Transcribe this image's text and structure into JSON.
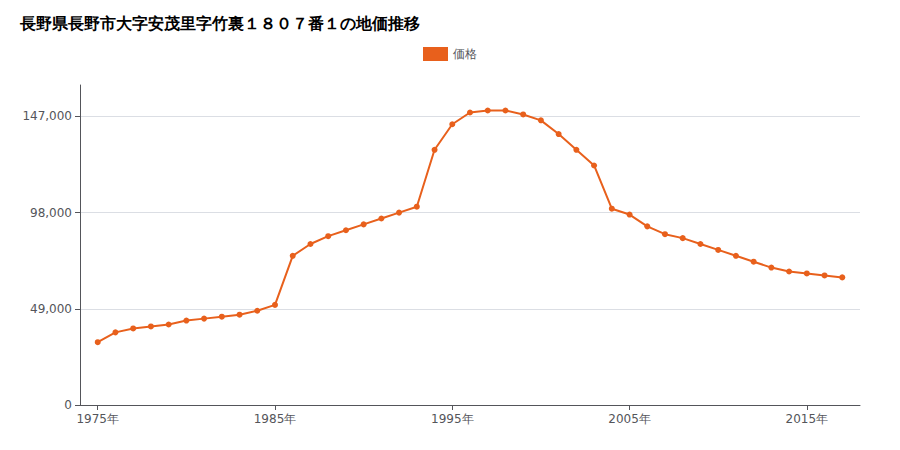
{
  "chart_data": {
    "type": "line",
    "title": "長野県長野市大字安茂里字竹裏１８０７番１の地価推移",
    "x": [
      1975,
      1976,
      1977,
      1978,
      1979,
      1980,
      1981,
      1982,
      1983,
      1984,
      1985,
      1986,
      1987,
      1988,
      1989,
      1990,
      1991,
      1992,
      1993,
      1994,
      1995,
      1996,
      1997,
      1998,
      1999,
      2000,
      2001,
      2002,
      2003,
      2004,
      2005,
      2006,
      2007,
      2008,
      2009,
      2010,
      2011,
      2012,
      2013,
      2014,
      2015,
      2016,
      2017
    ],
    "series": [
      {
        "name": "価格",
        "color": "#e8601c",
        "marker": "circle",
        "values": [
          32000,
          37000,
          39000,
          40000,
          41000,
          43000,
          44000,
          45000,
          46000,
          48000,
          51000,
          76000,
          82000,
          86000,
          89000,
          92000,
          95000,
          98000,
          101000,
          130000,
          143000,
          149000,
          150000,
          150000,
          148000,
          145000,
          138000,
          130000,
          122000,
          100000,
          97000,
          91000,
          87000,
          85000,
          82000,
          79000,
          76000,
          73000,
          70000,
          68000,
          67000,
          66000,
          65000
        ]
      }
    ],
    "xlim": [
      1974,
      2018
    ],
    "xticks": [
      {
        "value": 1975,
        "label": "1975年"
      },
      {
        "value": 1985,
        "label": "1985年"
      },
      {
        "value": 1995,
        "label": "1995年"
      },
      {
        "value": 2005,
        "label": "2005年"
      },
      {
        "value": 2015,
        "label": "2015年"
      }
    ],
    "ylim": [
      0,
      163000
    ],
    "yticks": [
      0,
      {
        "value": 49000,
        "label": "49,000"
      },
      {
        "value": 98000,
        "label": "98,000"
      },
      {
        "value": 147000,
        "label": "147,000"
      }
    ],
    "grid": true,
    "legend": "top"
  }
}
